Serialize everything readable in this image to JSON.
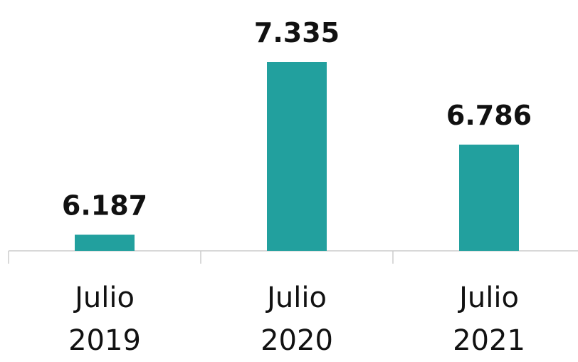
{
  "chart_data": {
    "type": "bar",
    "categories": [
      "Julio 2019",
      "Julio 2020",
      "Julio 2021"
    ],
    "values": [
      6187,
      7335,
      6786
    ],
    "value_labels": [
      "6.187",
      "7.335",
      "6.786"
    ],
    "color": "#22a09e",
    "ylim": [
      6080,
      7335
    ]
  }
}
